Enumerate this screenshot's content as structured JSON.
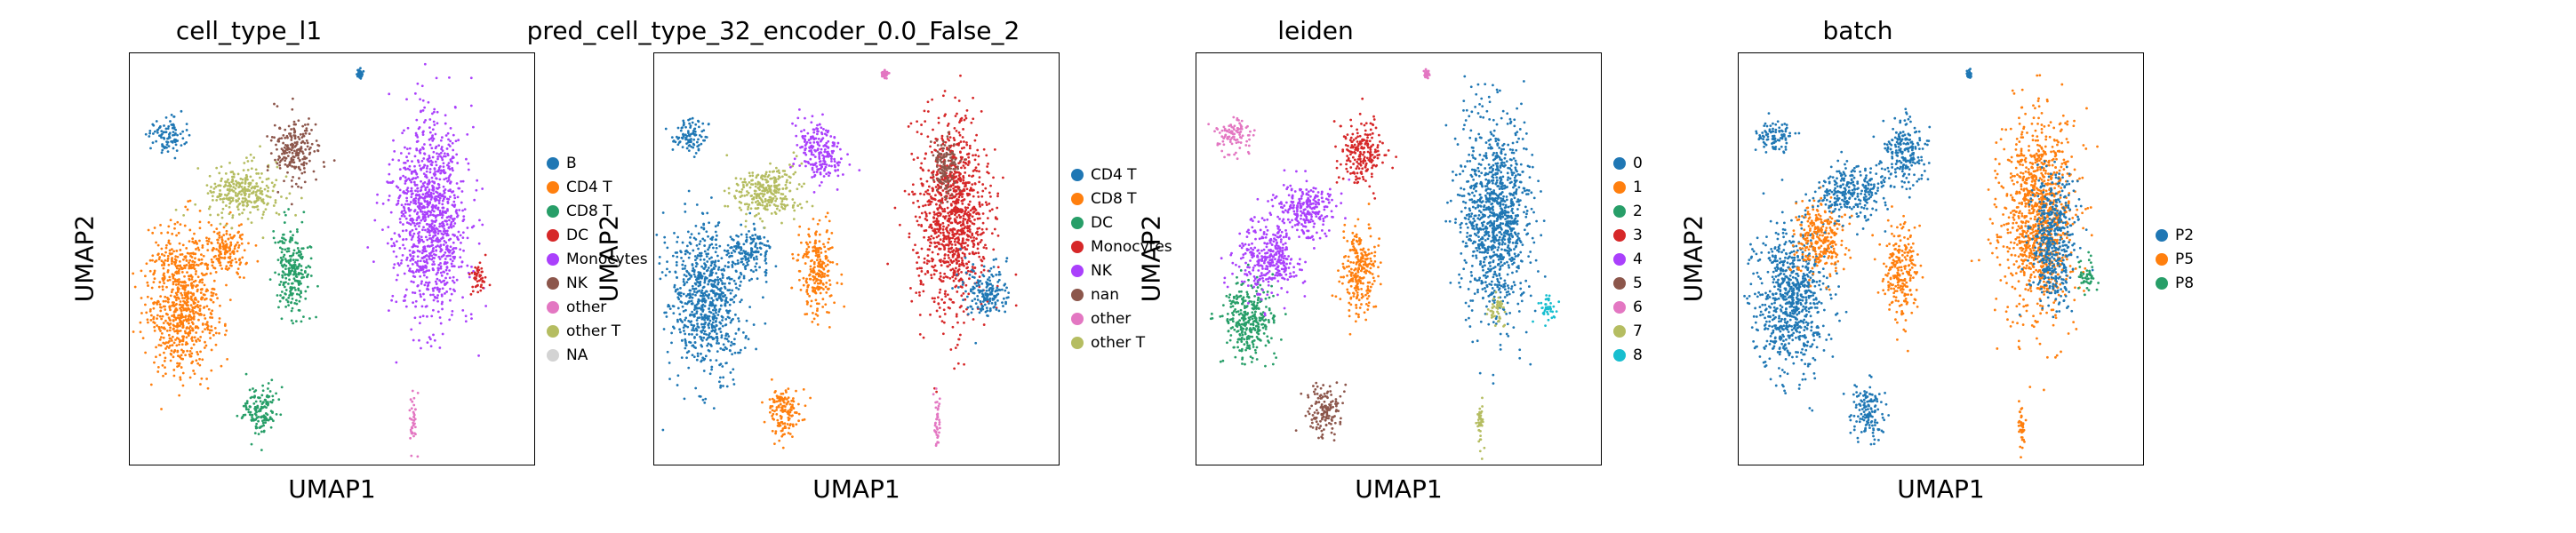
{
  "chart_data": [
    {
      "type": "scatter",
      "title": "cell_type_l1",
      "xlabel": "UMAP1",
      "ylabel": "UMAP2",
      "legend_placement": "right",
      "legend": [
        {
          "label": "B",
          "color": "#1f77b4"
        },
        {
          "label": "CD4 T",
          "color": "#ff7f0e"
        },
        {
          "label": "CD8 T",
          "color": "#279e68"
        },
        {
          "label": "DC",
          "color": "#d62728"
        },
        {
          "label": "Monocytes",
          "color": "#aa40fc"
        },
        {
          "label": "NK",
          "color": "#8c564b"
        },
        {
          "label": "other",
          "color": "#e377c2"
        },
        {
          "label": "other T",
          "color": "#b5bd61"
        },
        {
          "label": "NA",
          "color": "#d3d3d3"
        }
      ],
      "clusters": [
        {
          "c": "#1f77b4",
          "x": 0.09,
          "y": 0.8,
          "rx": 0.04,
          "ry": 0.04
        },
        {
          "c": "#ff7f0e",
          "x": 0.13,
          "y": 0.4,
          "rx": 0.08,
          "ry": 0.16
        },
        {
          "c": "#ff7f0e",
          "x": 0.24,
          "y": 0.52,
          "rx": 0.05,
          "ry": 0.05
        },
        {
          "c": "#b5bd61",
          "x": 0.28,
          "y": 0.66,
          "rx": 0.08,
          "ry": 0.06
        },
        {
          "c": "#279e68",
          "x": 0.4,
          "y": 0.47,
          "rx": 0.04,
          "ry": 0.1
        },
        {
          "c": "#279e68",
          "x": 0.32,
          "y": 0.13,
          "rx": 0.04,
          "ry": 0.06
        },
        {
          "c": "#8c564b",
          "x": 0.41,
          "y": 0.76,
          "rx": 0.05,
          "ry": 0.07
        },
        {
          "c": "#aa40fc",
          "x": 0.74,
          "y": 0.6,
          "rx": 0.08,
          "ry": 0.22
        },
        {
          "c": "#d62728",
          "x": 0.86,
          "y": 0.46,
          "rx": 0.02,
          "ry": 0.04
        },
        {
          "c": "#e377c2",
          "x": 0.7,
          "y": 0.1,
          "rx": 0.008,
          "ry": 0.06
        },
        {
          "c": "#1f77b4",
          "x": 0.57,
          "y": 0.95,
          "rx": 0.006,
          "ry": 0.008
        }
      ]
    },
    {
      "type": "scatter",
      "title": "pred_cell_type_32_encoder_0.0_False_2",
      "xlabel": "UMAP1",
      "ylabel": "UMAP2",
      "legend_placement": "right",
      "legend": [
        {
          "label": "CD4 T",
          "color": "#1f77b4"
        },
        {
          "label": "CD8 T",
          "color": "#ff7f0e"
        },
        {
          "label": "DC",
          "color": "#279e68"
        },
        {
          "label": "Monocytes",
          "color": "#d62728"
        },
        {
          "label": "NK",
          "color": "#aa40fc"
        },
        {
          "label": "nan",
          "color": "#8c564b"
        },
        {
          "label": "other",
          "color": "#e377c2"
        },
        {
          "label": "other T",
          "color": "#b5bd61"
        }
      ],
      "clusters": [
        {
          "c": "#1f77b4",
          "x": 0.09,
          "y": 0.8,
          "rx": 0.04,
          "ry": 0.04
        },
        {
          "c": "#1f77b4",
          "x": 0.13,
          "y": 0.4,
          "rx": 0.08,
          "ry": 0.16
        },
        {
          "c": "#1f77b4",
          "x": 0.24,
          "y": 0.52,
          "rx": 0.05,
          "ry": 0.05
        },
        {
          "c": "#b5bd61",
          "x": 0.28,
          "y": 0.66,
          "rx": 0.08,
          "ry": 0.06
        },
        {
          "c": "#ff7f0e",
          "x": 0.4,
          "y": 0.47,
          "rx": 0.04,
          "ry": 0.1
        },
        {
          "c": "#ff7f0e",
          "x": 0.32,
          "y": 0.13,
          "rx": 0.04,
          "ry": 0.06
        },
        {
          "c": "#aa40fc",
          "x": 0.41,
          "y": 0.76,
          "rx": 0.05,
          "ry": 0.07
        },
        {
          "c": "#d62728",
          "x": 0.74,
          "y": 0.6,
          "rx": 0.08,
          "ry": 0.22
        },
        {
          "c": "#8c564b",
          "x": 0.72,
          "y": 0.72,
          "rx": 0.03,
          "ry": 0.07
        },
        {
          "c": "#1f77b4",
          "x": 0.82,
          "y": 0.42,
          "rx": 0.05,
          "ry": 0.06
        },
        {
          "c": "#e377c2",
          "x": 0.7,
          "y": 0.1,
          "rx": 0.008,
          "ry": 0.06
        },
        {
          "c": "#e377c2",
          "x": 0.57,
          "y": 0.95,
          "rx": 0.006,
          "ry": 0.008
        }
      ]
    },
    {
      "type": "scatter",
      "title": "leiden",
      "xlabel": "UMAP1",
      "ylabel": "UMAP2",
      "legend_placement": "right",
      "legend": [
        {
          "label": "0",
          "color": "#1f77b4"
        },
        {
          "label": "1",
          "color": "#ff7f0e"
        },
        {
          "label": "2",
          "color": "#279e68"
        },
        {
          "label": "3",
          "color": "#d62728"
        },
        {
          "label": "4",
          "color": "#aa40fc"
        },
        {
          "label": "5",
          "color": "#8c564b"
        },
        {
          "label": "6",
          "color": "#e377c2"
        },
        {
          "label": "7",
          "color": "#b5bd61"
        },
        {
          "label": "8",
          "color": "#17becf"
        }
      ],
      "clusters": [
        {
          "c": "#e377c2",
          "x": 0.09,
          "y": 0.8,
          "rx": 0.04,
          "ry": 0.04
        },
        {
          "c": "#279e68",
          "x": 0.13,
          "y": 0.35,
          "rx": 0.06,
          "ry": 0.09
        },
        {
          "c": "#aa40fc",
          "x": 0.18,
          "y": 0.5,
          "rx": 0.07,
          "ry": 0.08
        },
        {
          "c": "#aa40fc",
          "x": 0.27,
          "y": 0.62,
          "rx": 0.07,
          "ry": 0.06
        },
        {
          "c": "#ff7f0e",
          "x": 0.4,
          "y": 0.47,
          "rx": 0.04,
          "ry": 0.1
        },
        {
          "c": "#8c564b",
          "x": 0.32,
          "y": 0.13,
          "rx": 0.04,
          "ry": 0.06
        },
        {
          "c": "#d62728",
          "x": 0.41,
          "y": 0.76,
          "rx": 0.05,
          "ry": 0.07
        },
        {
          "c": "#1f77b4",
          "x": 0.74,
          "y": 0.6,
          "rx": 0.08,
          "ry": 0.22
        },
        {
          "c": "#b5bd61",
          "x": 0.74,
          "y": 0.38,
          "rx": 0.02,
          "ry": 0.04
        },
        {
          "c": "#17becf",
          "x": 0.87,
          "y": 0.38,
          "rx": 0.02,
          "ry": 0.03
        },
        {
          "c": "#b5bd61",
          "x": 0.7,
          "y": 0.1,
          "rx": 0.008,
          "ry": 0.06
        },
        {
          "c": "#e377c2",
          "x": 0.57,
          "y": 0.95,
          "rx": 0.006,
          "ry": 0.008
        }
      ]
    },
    {
      "type": "scatter",
      "title": "batch",
      "xlabel": "UMAP1",
      "ylabel": "UMAP2",
      "legend_placement": "right",
      "legend": [
        {
          "label": "P2",
          "color": "#1f77b4"
        },
        {
          "label": "P5",
          "color": "#ff7f0e"
        },
        {
          "label": "P8",
          "color": "#279e68"
        }
      ],
      "clusters": [
        {
          "c": "#1f77b4",
          "x": 0.09,
          "y": 0.8,
          "rx": 0.04,
          "ry": 0.04
        },
        {
          "c": "#1f77b4",
          "x": 0.13,
          "y": 0.4,
          "rx": 0.08,
          "ry": 0.16
        },
        {
          "c": "#ff7f0e",
          "x": 0.2,
          "y": 0.55,
          "rx": 0.06,
          "ry": 0.08
        },
        {
          "c": "#1f77b4",
          "x": 0.28,
          "y": 0.66,
          "rx": 0.08,
          "ry": 0.06
        },
        {
          "c": "#ff7f0e",
          "x": 0.4,
          "y": 0.47,
          "rx": 0.04,
          "ry": 0.1
        },
        {
          "c": "#1f77b4",
          "x": 0.32,
          "y": 0.13,
          "rx": 0.04,
          "ry": 0.06
        },
        {
          "c": "#1f77b4",
          "x": 0.41,
          "y": 0.76,
          "rx": 0.05,
          "ry": 0.07
        },
        {
          "c": "#ff7f0e",
          "x": 0.74,
          "y": 0.6,
          "rx": 0.08,
          "ry": 0.22
        },
        {
          "c": "#1f77b4",
          "x": 0.78,
          "y": 0.55,
          "rx": 0.05,
          "ry": 0.15
        },
        {
          "c": "#279e68",
          "x": 0.86,
          "y": 0.46,
          "rx": 0.02,
          "ry": 0.04
        },
        {
          "c": "#ff7f0e",
          "x": 0.7,
          "y": 0.1,
          "rx": 0.008,
          "ry": 0.06
        },
        {
          "c": "#1f77b4",
          "x": 0.57,
          "y": 0.95,
          "rx": 0.006,
          "ry": 0.008
        }
      ]
    }
  ]
}
